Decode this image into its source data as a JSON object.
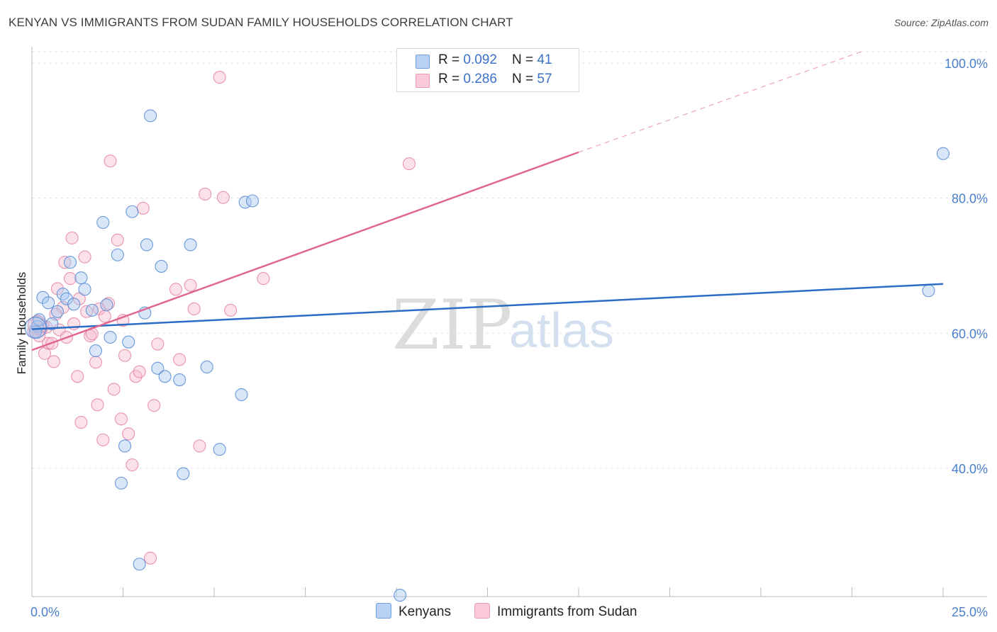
{
  "title": "KENYAN VS IMMIGRANTS FROM SUDAN FAMILY HOUSEHOLDS CORRELATION CHART",
  "source": "Source: ZipAtlas.com",
  "watermark": {
    "zip": "ZIP",
    "atlas": "atlas"
  },
  "legend": {
    "kenyans": {
      "r_label": "R = ",
      "r_value": "0.092",
      "n_label": "N = ",
      "n_value": "41"
    },
    "sudan": {
      "r_label": "R = ",
      "r_value": "0.286",
      "n_label": "N = ",
      "n_value": "57"
    }
  },
  "bottom_legend": {
    "kenyans": "Kenyans",
    "sudan": "Immigrants from Sudan"
  },
  "colors": {
    "kenyans_fill": "#a8c8f0",
    "kenyans_stroke": "#5b8fd6",
    "kenyans_line": "#2b6cc4",
    "sudan_fill": "#f6bccd",
    "sudan_stroke": "#e58aa6",
    "sudan_line": "#e06690",
    "axis_text": "#4a7fcc",
    "grid": "#e3e3e3"
  },
  "chart_data": {
    "type": "scatter",
    "title": "KENYAN VS IMMIGRANTS FROM SUDAN FAMILY HOUSEHOLDS CORRELATION CHART",
    "xlabel": "",
    "ylabel": "Family Households",
    "xlim": [
      0,
      25
    ],
    "ylim": [
      21,
      102
    ],
    "x_tick_labels": [
      "0.0%",
      "25.0%"
    ],
    "y_ticks": [
      40,
      60,
      80,
      100
    ],
    "y_tick_labels": [
      "40.0%",
      "60.0%",
      "80.0%",
      "100.0%"
    ],
    "grid": true,
    "series": [
      {
        "name": "Kenyans",
        "R": 0.092,
        "N": 41,
        "trend": {
          "x": [
            0,
            25
          ],
          "y": [
            60.6,
            67.3
          ],
          "dashed_to": null
        },
        "points": [
          [
            0.15,
            61
          ],
          [
            0.1,
            60.2
          ],
          [
            0.3,
            65.3
          ],
          [
            0.45,
            64.5
          ],
          [
            0.55,
            61.4
          ],
          [
            0.7,
            63.2
          ],
          [
            0.85,
            65.8
          ],
          [
            0.95,
            65.1
          ],
          [
            1.05,
            70.5
          ],
          [
            1.15,
            64.3
          ],
          [
            1.35,
            68.2
          ],
          [
            1.45,
            66.5
          ],
          [
            1.65,
            63.4
          ],
          [
            1.75,
            57.4
          ],
          [
            1.95,
            76.4
          ],
          [
            2.05,
            64.2
          ],
          [
            2.15,
            59.4
          ],
          [
            2.35,
            71.6
          ],
          [
            2.55,
            43.3
          ],
          [
            2.65,
            58.7
          ],
          [
            2.75,
            78
          ],
          [
            2.95,
            25.8
          ],
          [
            3.1,
            63
          ],
          [
            3.15,
            73.1
          ],
          [
            3.25,
            92.2
          ],
          [
            3.45,
            54.8
          ],
          [
            3.55,
            69.9
          ],
          [
            3.65,
            53.6
          ],
          [
            4.05,
            53.1
          ],
          [
            4.15,
            39.2
          ],
          [
            4.35,
            73.1
          ],
          [
            4.8,
            55
          ],
          [
            5.15,
            42.8
          ],
          [
            5.75,
            50.9
          ],
          [
            5.85,
            79.4
          ],
          [
            6.05,
            79.6
          ],
          [
            2.45,
            37.8
          ],
          [
            10.1,
            21.2
          ],
          [
            24.6,
            66.3
          ],
          [
            25.0,
            86.6
          ],
          [
            0.2,
            62
          ]
        ]
      },
      {
        "name": "Immigrants from Sudan",
        "R": 0.286,
        "N": 57,
        "trend": {
          "x": [
            0,
            15
          ],
          "y": [
            57.5,
            86.8
          ],
          "dashed_to": {
            "x": 25,
            "y": 106
          }
        },
        "points": [
          [
            0.05,
            60.3
          ],
          [
            0.15,
            61.8
          ],
          [
            0.25,
            60.5
          ],
          [
            0.35,
            57
          ],
          [
            0.45,
            58.5
          ],
          [
            0.55,
            58.5
          ],
          [
            0.6,
            55.8
          ],
          [
            0.7,
            66.6
          ],
          [
            0.75,
            60.5
          ],
          [
            0.85,
            63.8
          ],
          [
            0.9,
            70.5
          ],
          [
            0.95,
            59.4
          ],
          [
            1.05,
            68.1
          ],
          [
            1.1,
            74.1
          ],
          [
            1.15,
            61.4
          ],
          [
            1.25,
            53.6
          ],
          [
            1.3,
            65.1
          ],
          [
            1.35,
            46.8
          ],
          [
            1.45,
            71.3
          ],
          [
            1.5,
            63.2
          ],
          [
            1.6,
            59.6
          ],
          [
            1.65,
            59.9
          ],
          [
            1.75,
            55.7
          ],
          [
            1.8,
            49.4
          ],
          [
            1.85,
            63.6
          ],
          [
            1.95,
            44.2
          ],
          [
            2.0,
            62.5
          ],
          [
            2.1,
            64.4
          ],
          [
            2.15,
            85.5
          ],
          [
            2.25,
            51.7
          ],
          [
            2.35,
            73.8
          ],
          [
            2.45,
            47.3
          ],
          [
            2.5,
            61.9
          ],
          [
            2.55,
            56.7
          ],
          [
            2.65,
            45.1
          ],
          [
            2.75,
            40.5
          ],
          [
            2.85,
            53.6
          ],
          [
            2.95,
            54.3
          ],
          [
            3.05,
            78.5
          ],
          [
            3.25,
            26.7
          ],
          [
            3.35,
            49.3
          ],
          [
            3.45,
            58.4
          ],
          [
            3.95,
            66.5
          ],
          [
            4.05,
            56.1
          ],
          [
            4.35,
            67.1
          ],
          [
            4.45,
            63.6
          ],
          [
            4.6,
            43.3
          ],
          [
            4.75,
            80.6
          ],
          [
            5.15,
            97.9
          ],
          [
            5.25,
            80.1
          ],
          [
            5.45,
            63.4
          ],
          [
            6.35,
            68.1
          ],
          [
            10.35,
            85.1
          ],
          [
            0.4,
            60.9
          ],
          [
            0.2,
            59.6
          ],
          [
            0.65,
            62.8
          ],
          [
            0.3,
            61.1
          ]
        ]
      }
    ]
  },
  "bubbles": {
    "kenyans_big": [
      0.1,
      60.8
    ],
    "sudan_big": [
      0.15,
      61.2
    ]
  }
}
